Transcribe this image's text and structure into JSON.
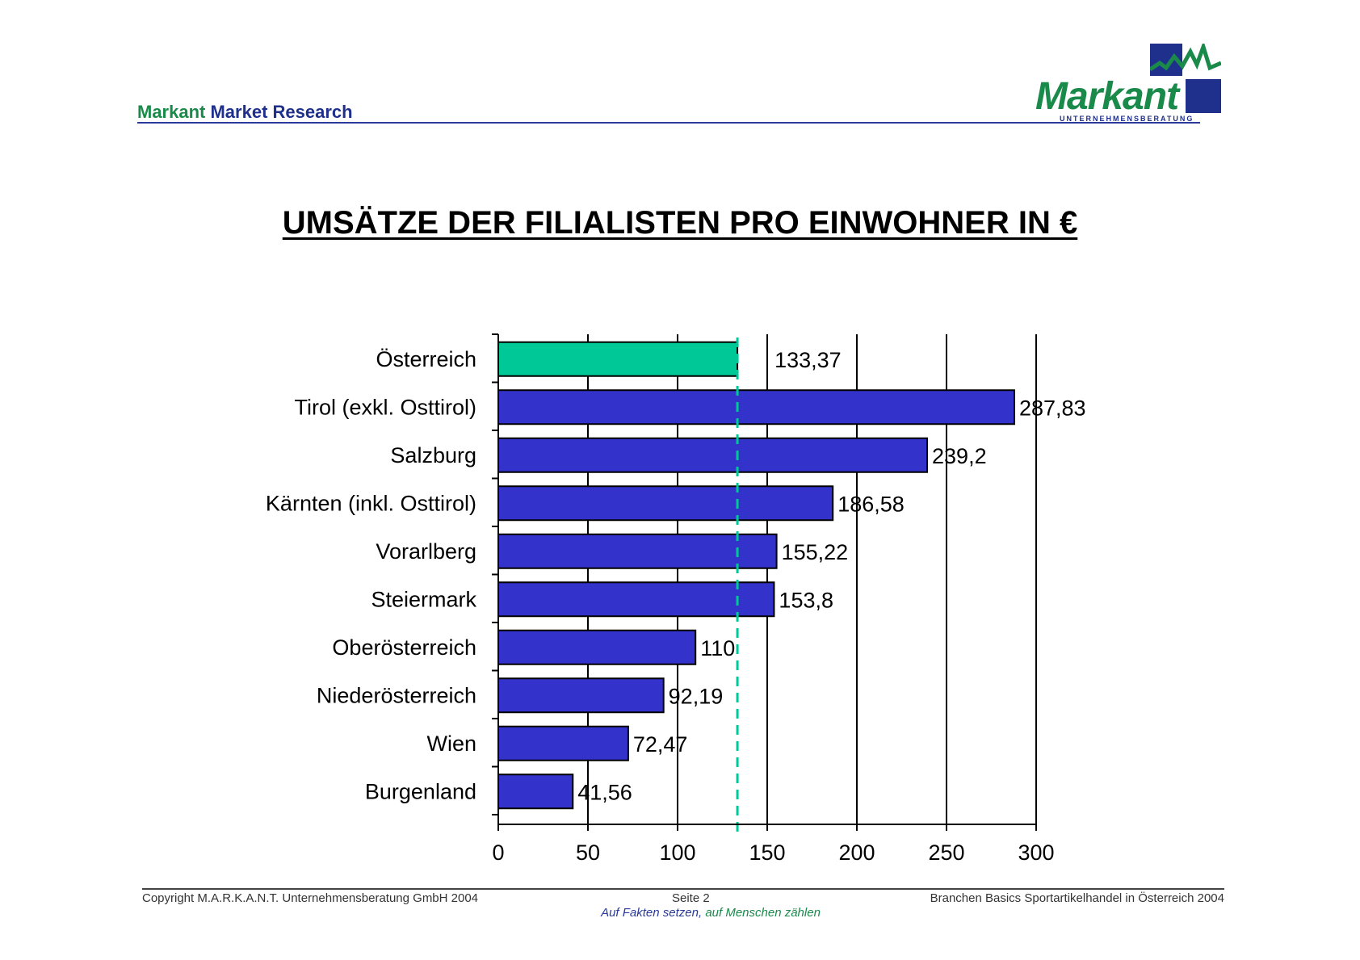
{
  "header": {
    "brand_word_1": "Markant",
    "brand_word_2": "Market Research",
    "logo_text": "Markant",
    "logo_subtext": "UNTERNEHMENSBERATUNG"
  },
  "title": "UMSÄTZE DER FILIALISTEN PRO EINWOHNER IN €",
  "chart_data": {
    "type": "bar",
    "orientation": "horizontal",
    "title": "UMSÄTZE DER FILIALISTEN PRO EINWOHNER IN €",
    "categories": [
      "Österreich",
      "Tirol (exkl. Osttirol)",
      "Salzburg",
      "Kärnten (inkl. Osttirol)",
      "Vorarlberg",
      "Steiermark",
      "Oberösterreich",
      "Niederösterreich",
      "Wien",
      "Burgenland"
    ],
    "values": [
      133.37,
      287.83,
      239.2,
      186.58,
      155.22,
      153.8,
      110,
      92.19,
      72.47,
      41.56
    ],
    "value_labels": [
      "133,37",
      "287,83",
      "239,2",
      "186,58",
      "155,22",
      "153,8",
      "110",
      "92,19",
      "72,47",
      "41,56"
    ],
    "highlight_index": 0,
    "reference_line": 133.37,
    "xlim": [
      0,
      300
    ],
    "xticks": [
      0,
      50,
      100,
      150,
      200,
      250,
      300
    ],
    "xtick_labels": [
      "0",
      "50",
      "100",
      "150",
      "200",
      "250",
      "300"
    ],
    "grid": true,
    "legend": "none",
    "colors": {
      "bar": "#3333cc",
      "highlight": "#00c896",
      "reference_line": "#00c896",
      "grid": "#000000"
    }
  },
  "footer": {
    "copyright": "Copyright  M.A.R.K.A.N.T. Unternehmensberatung GmbH 2004",
    "page": "Seite  2",
    "report": "Branchen Basics Sportartikelhandel in Österreich 2004",
    "slogan_part_1": "Auf Fakten setzen,",
    "slogan_part_2": " auf Menschen zählen"
  }
}
